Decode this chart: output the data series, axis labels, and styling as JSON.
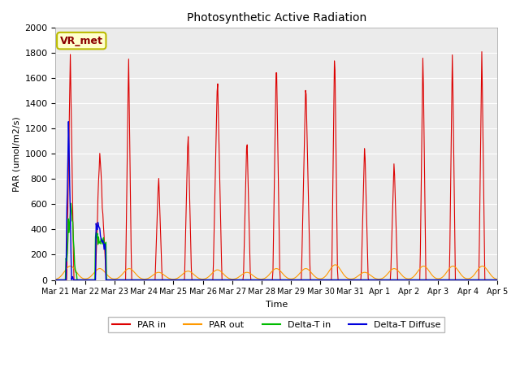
{
  "title": "Photosynthetic Active Radiation",
  "ylabel": "PAR (umol/m2/s)",
  "xlabel": "Time",
  "ylim": [
    0,
    2000
  ],
  "bg_color": "#ebebeb",
  "legend_label": "VR_met",
  "legend_entries": [
    "PAR in",
    "PAR out",
    "Delta-T in",
    "Delta-T Diffuse"
  ],
  "legend_colors": [
    "#dd0000",
    "#ff9900",
    "#00bb00",
    "#0000dd"
  ],
  "x_tick_labels": [
    "Mar 21",
    "Mar 22",
    "Mar 23",
    "Mar 24",
    "Mar 25",
    "Mar 26",
    "Mar 27",
    "Mar 28",
    "Mar 29",
    "Mar 30",
    "Mar 31",
    "Apr 1",
    "Apr 2",
    "Apr 3",
    "Apr 4",
    "Apr 5"
  ],
  "n_days": 15,
  "figsize": [
    6.4,
    4.8
  ],
  "dpi": 100
}
